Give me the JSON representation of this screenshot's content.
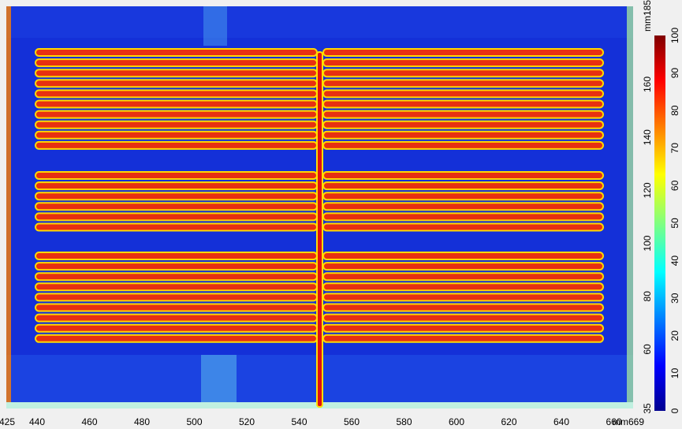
{
  "x_axis": {
    "ticks": [
      "425",
      "440",
      "460",
      "480",
      "500",
      "520",
      "540",
      "560",
      "580",
      "600",
      "620",
      "640",
      "660"
    ],
    "end_label": "mm669"
  },
  "y_axis": {
    "ticks": [
      "35",
      "60",
      "80",
      "100",
      "120",
      "140",
      "160"
    ],
    "end_label": "mm185"
  },
  "colorbar": {
    "ticks": [
      "0",
      "10",
      "20",
      "30",
      "40",
      "50",
      "60",
      "70",
      "80",
      "90",
      "100"
    ]
  }
}
